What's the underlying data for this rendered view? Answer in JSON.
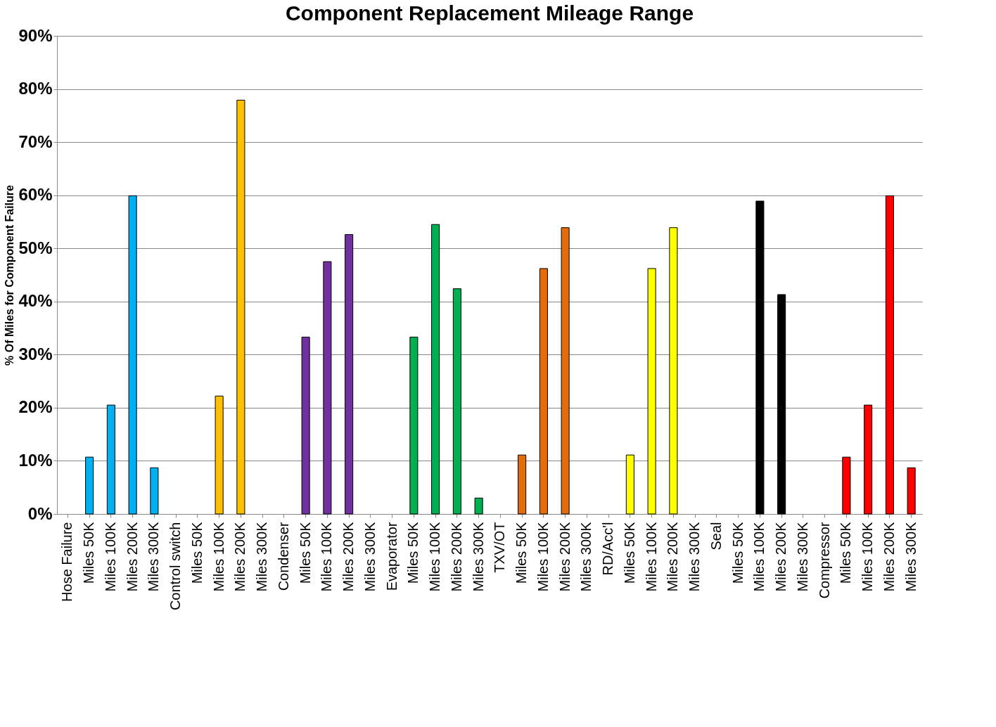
{
  "chart_data": {
    "type": "bar",
    "title": "Component Replacement Mileage Range",
    "ylabel": "% Of Miles for Component Failure",
    "categories": [
      "Hose Failure",
      "Miles 50K",
      "Miles 100K",
      "Miles 200K",
      "Miles 300K",
      "Control switch",
      "Miles 50K",
      "Miles 100K",
      "Miles 200K",
      "Miles 300K",
      "Condenser",
      "Miles 50K",
      "Miles 100K",
      "Miles 200K",
      "Miles 300K",
      "Evaporator",
      "Miles 50K",
      "Miles 100K",
      "Miles 200K",
      "Miles 300K",
      "TXV/OT",
      "Miles 50K",
      "Miles 100K",
      "Miles 200K",
      "Miles 300K",
      "RD/Acc'l",
      "Miles 50K",
      "Miles 100K",
      "Miles 200K",
      "Miles 300K",
      "Seal",
      "Miles 50K",
      "Miles 100K",
      "Miles 200K",
      "Miles 300K",
      "Compressor",
      "Miles 50K",
      "Miles 100K",
      "Miles 200K",
      "Miles 300K"
    ],
    "values": [
      null,
      10.7,
      20.5,
      59.9,
      8.7,
      null,
      null,
      22.2,
      77.9,
      null,
      null,
      33.3,
      47.5,
      52.6,
      null,
      null,
      33.3,
      54.5,
      42.4,
      3.0,
      null,
      11.1,
      46.2,
      53.9,
      null,
      null,
      11.1,
      46.2,
      53.9,
      null,
      null,
      null,
      58.9,
      41.3,
      null,
      null,
      10.7,
      20.5,
      59.9,
      8.7
    ],
    "colors": [
      "#00b0f0",
      "#00b0f0",
      "#00b0f0",
      "#00b0f0",
      "#00b0f0",
      "#ffc000",
      "#ffc000",
      "#ffc000",
      "#ffc000",
      "#ffc000",
      "#7030a0",
      "#7030a0",
      "#7030a0",
      "#7030a0",
      "#7030a0",
      "#00b050",
      "#00b050",
      "#00b050",
      "#00b050",
      "#00b050",
      "#e46c0a",
      "#e46c0a",
      "#e46c0a",
      "#e46c0a",
      "#e46c0a",
      "#ffff00",
      "#ffff00",
      "#ffff00",
      "#ffff00",
      "#ffff00",
      "#000000",
      "#000000",
      "#000000",
      "#000000",
      "#000000",
      "#ff0000",
      "#ff0000",
      "#ff0000",
      "#ff0000",
      "#ff0000"
    ],
    "ylim": [
      0,
      90
    ],
    "yticks": [
      {
        "value": 0,
        "label": "0%"
      },
      {
        "value": 10,
        "label": "10%"
      },
      {
        "value": 20,
        "label": "20%"
      },
      {
        "value": 30,
        "label": "30%"
      },
      {
        "value": 40,
        "label": "40%"
      },
      {
        "value": 50,
        "label": "50%"
      },
      {
        "value": 60,
        "label": "60%"
      },
      {
        "value": 70,
        "label": "70%"
      },
      {
        "value": 80,
        "label": "80%"
      },
      {
        "value": 90,
        "label": "90%"
      }
    ],
    "grid": "y"
  }
}
